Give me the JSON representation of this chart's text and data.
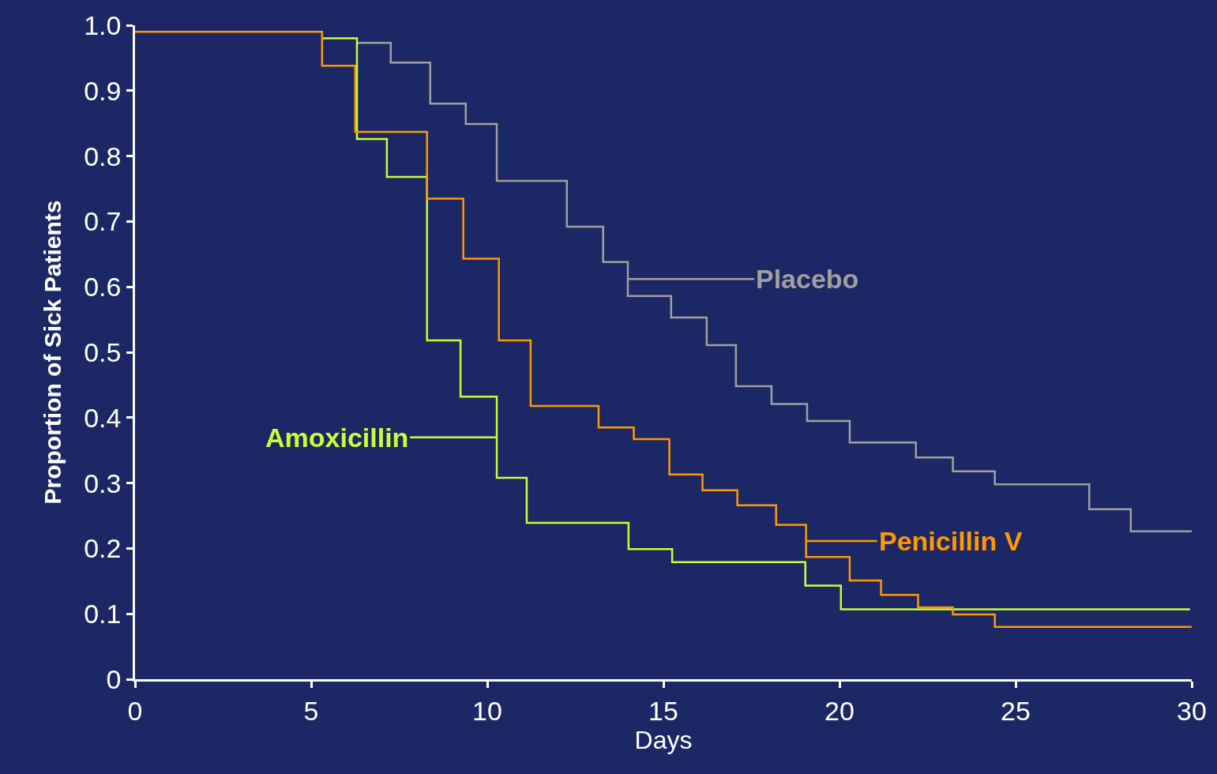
{
  "chart_data": {
    "type": "step",
    "xlabel": "Days",
    "ylabel": "Proportion of Sick Patients",
    "series": [
      {
        "name": "Placebo",
        "color": "#a0a0a0",
        "x": [
          6.3,
          7.26,
          8.38,
          9.39,
          10.27,
          12.26,
          13.29,
          13.99,
          15.22,
          16.23,
          17.06,
          18.07,
          19.08,
          20.29,
          22.17,
          23.22,
          24.41,
          27.09,
          28.27,
          30
        ],
        "values": [
          0.973,
          0.943,
          0.88,
          0.849,
          0.762,
          0.692,
          0.638,
          0.586,
          0.553,
          0.511,
          0.448,
          0.421,
          0.395,
          0.362,
          0.339,
          0.318,
          0.298,
          0.26,
          0.226,
          0.226
        ]
      },
      {
        "name": "Amoxicillin",
        "color": "#ccff33",
        "x": [
          5.31,
          6.3,
          7.15,
          8.29,
          9.24,
          10.27,
          11.12,
          14.01,
          15.25,
          19.03,
          20.04,
          29.95
        ],
        "values": [
          0.98,
          0.826,
          0.768,
          0.518,
          0.432,
          0.308,
          0.239,
          0.199,
          0.179,
          0.143,
          0.107,
          0.107
        ]
      },
      {
        "name": "Penicillin V",
        "color": "#ff9900",
        "x": [
          0,
          5.31,
          6.25,
          8.29,
          9.32,
          10.33,
          11.23,
          13.16,
          14.16,
          15.17,
          16.11,
          17.1,
          18.2,
          19.05,
          20.29,
          21.18,
          22.23,
          23.22,
          24.41,
          30
        ],
        "values": [
          0.99,
          0.938,
          0.837,
          0.735,
          0.643,
          0.518,
          0.418,
          0.385,
          0.367,
          0.313,
          0.289,
          0.266,
          0.236,
          0.187,
          0.151,
          0.129,
          0.11,
          0.099,
          0.08,
          0.08
        ]
      }
    ],
    "xlim": [
      0,
      30
    ],
    "xticks": [
      0,
      5,
      10,
      15,
      20,
      25,
      30
    ],
    "ylim": [
      0,
      1.0
    ],
    "yticks": [
      0,
      0.1,
      0.2,
      0.3,
      0.4,
      0.5,
      0.6,
      0.7,
      0.8,
      0.9,
      {
        "value": 1.0,
        "label": "1.0"
      }
    ],
    "grid": false,
    "legend": "right",
    "marker": "none",
    "line_style": "solid"
  }
}
